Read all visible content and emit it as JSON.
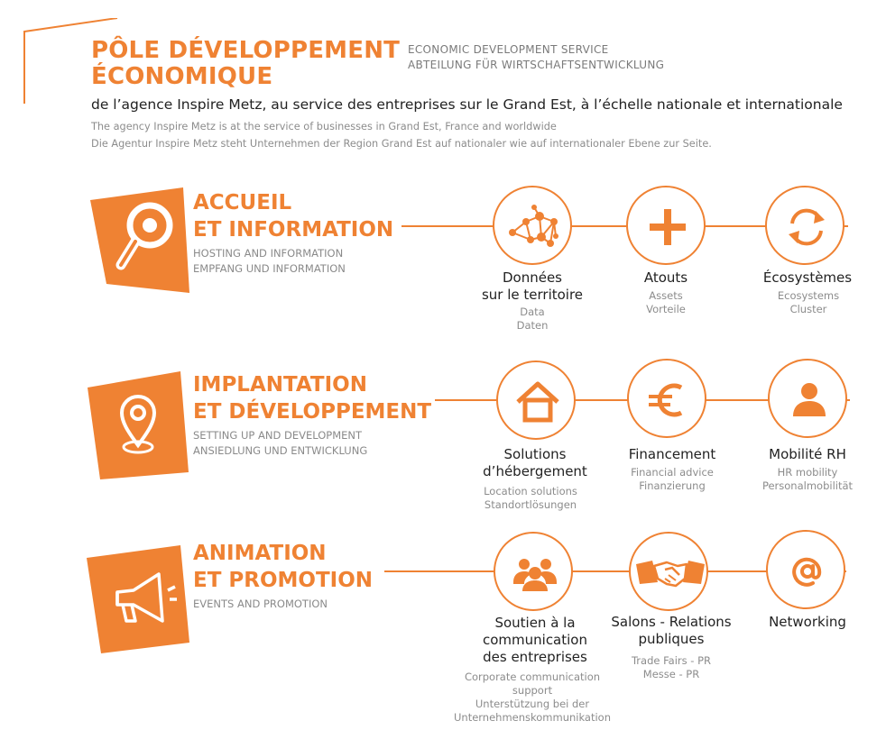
{
  "header": {
    "title_line1": "PÔLE DÉVELOPPEMENT",
    "title_line2": "ÉCONOMIQUE",
    "service_en": "ECONOMIC DEVELOPMENT SERVICE",
    "service_de": "ABTEILUNG FÜR WIRTSCHAFTSENTWICKLUNG",
    "intro_fr": "de l’agence Inspire Metz, au service des entreprises sur le Grand Est, à l’échelle nationale et internationale",
    "intro_en": "The agency Inspire Metz is at the service of businesses in Grand Est, France and worldwide",
    "intro_de": "Die Agentur Inspire Metz steht Unternehmen der Region Grand Est auf nationaler wie auf internationaler Ebene zur Seite."
  },
  "colors": {
    "accent": "#ef8233",
    "text": "#222222",
    "muted": "#8c8c8c"
  },
  "sections": [
    {
      "title_line1": "ACCUEIL",
      "title_line2": "ET INFORMATION",
      "sub_en": "HOSTING AND INFORMATION",
      "sub_de": "EMPFANG UND INFORMATION",
      "icon": "magnifier-icon",
      "items": [
        {
          "label1": "Données",
          "label2": "sur le territoire",
          "sub1": "Data",
          "sub2": "Daten",
          "icon": "network-icon"
        },
        {
          "label1": "Atouts",
          "label2": "",
          "sub1": "Assets",
          "sub2": "Vorteile",
          "icon": "plus-icon"
        },
        {
          "label1": "Écosystèmes",
          "label2": "",
          "sub1": "Ecosystems",
          "sub2": "Cluster",
          "icon": "refresh-icon"
        }
      ]
    },
    {
      "title_line1": "IMPLANTATION",
      "title_line2": "ET DÉVELOPPEMENT",
      "sub_en": "SETTING UP AND DEVELOPMENT",
      "sub_de": "ANSIEDLUNG UND ENTWICKLUNG",
      "icon": "location-pin-icon",
      "items": [
        {
          "label1": "Solutions",
          "label2": "d’hébergement",
          "sub1": "Location solutions",
          "sub2": "Standortlösungen",
          "icon": "house-icon"
        },
        {
          "label1": "Financement",
          "label2": "",
          "sub1": "Financial advice",
          "sub2": "Finanzierung",
          "icon": "euro-icon"
        },
        {
          "label1": "Mobilité RH",
          "label2": "",
          "sub1": "HR mobility",
          "sub2": "Personalmobilität",
          "icon": "person-icon"
        }
      ]
    },
    {
      "title_line1": "ANIMATION",
      "title_line2": "ET PROMOTION",
      "sub_en": "EVENTS AND PROMOTION",
      "sub_de": "",
      "icon": "megaphone-icon",
      "items": [
        {
          "label1": "Soutien à la",
          "label2": "communication",
          "label3": "des entreprises",
          "sub1": "Corporate communication",
          "sub2": "support",
          "sub3": "Unterstützung bei der",
          "sub4": "Unternehmenskommunikation",
          "icon": "group-icon"
        },
        {
          "label1": "Salons - Relations",
          "label2": "publiques",
          "sub1": "Trade Fairs - PR",
          "sub2": "Messe - PR",
          "icon": "handshake-icon"
        },
        {
          "label1": "Networking",
          "label2": "",
          "sub1": "",
          "sub2": "",
          "icon": "at-sign-icon"
        }
      ]
    }
  ]
}
